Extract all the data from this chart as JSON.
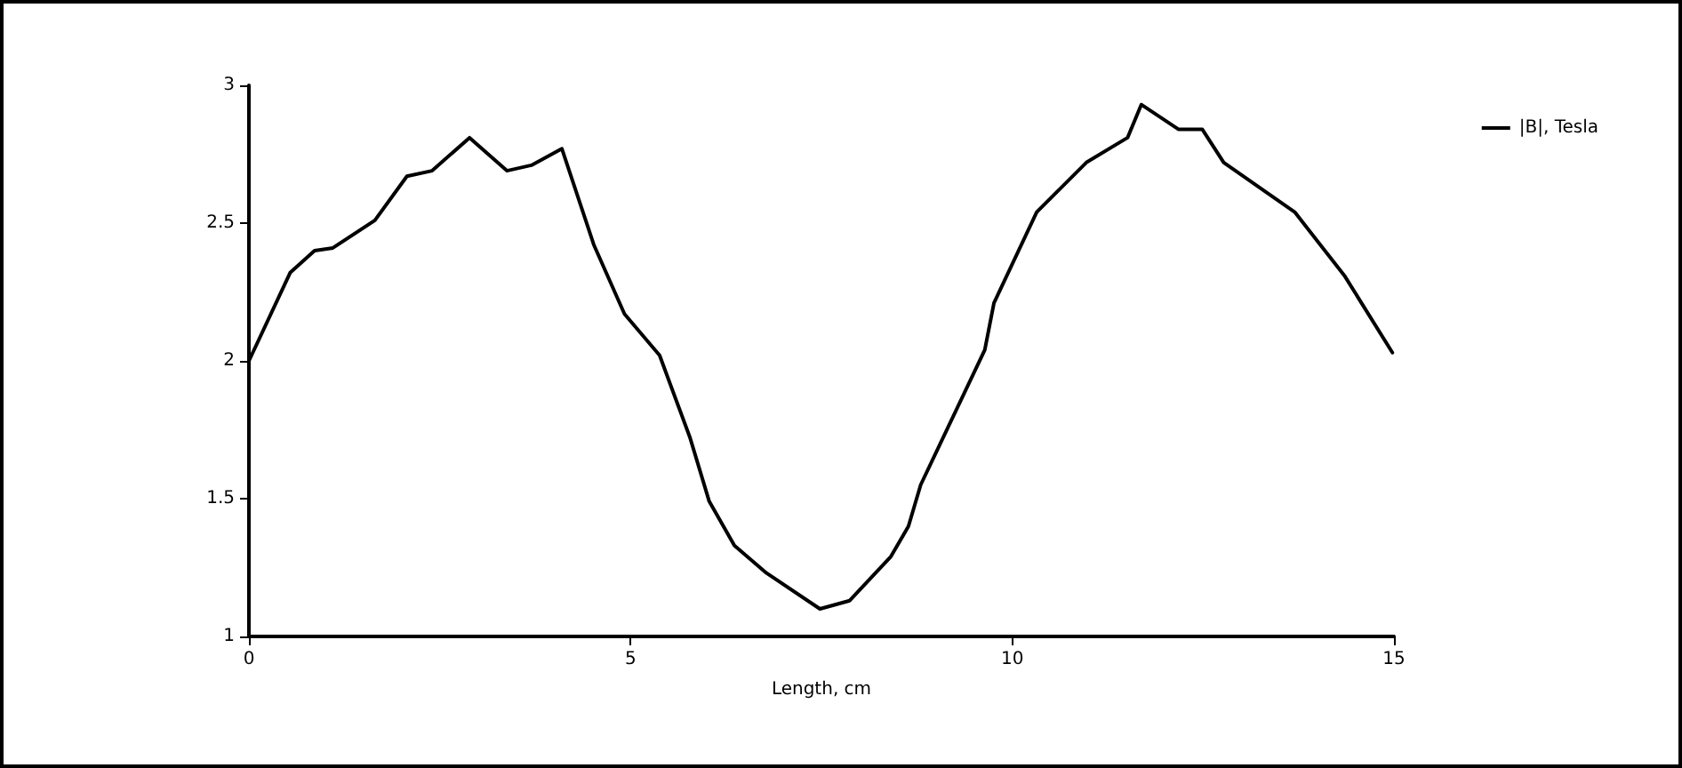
{
  "chart_data": {
    "type": "line",
    "xlabel": "Length, cm",
    "xlim": [
      0,
      15
    ],
    "xticks": [
      0,
      5,
      10,
      15
    ],
    "ylim": [
      1,
      3
    ],
    "yticks": [
      1,
      1.5,
      2,
      2.5,
      3
    ],
    "grid": false,
    "legend": "top right",
    "marker": "none",
    "line_style": "solid",
    "series": [
      {
        "name": "|B|, Tesla",
        "color": "#000000",
        "x": [
          0,
          0.54,
          0.86,
          1.1,
          1.65,
          2.07,
          2.4,
          2.89,
          3.38,
          3.7,
          4.1,
          4.52,
          4.92,
          5.38,
          5.78,
          6.03,
          6.36,
          6.78,
          7.48,
          7.87,
          8.41,
          8.64,
          8.8,
          9.64,
          9.76,
          10.32,
          10.97,
          11.51,
          11.69,
          12.18,
          12.49,
          12.77,
          13.7,
          14.35,
          14.98
        ],
        "values": [
          2.0,
          2.32,
          2.4,
          2.41,
          2.51,
          2.67,
          2.69,
          2.81,
          2.69,
          2.71,
          2.77,
          2.42,
          2.17,
          2.02,
          1.72,
          1.49,
          1.33,
          1.23,
          1.1,
          1.13,
          1.29,
          1.4,
          1.55,
          2.04,
          2.21,
          2.54,
          2.72,
          2.81,
          2.93,
          2.84,
          2.84,
          2.72,
          2.54,
          2.31,
          2.03
        ]
      }
    ]
  }
}
